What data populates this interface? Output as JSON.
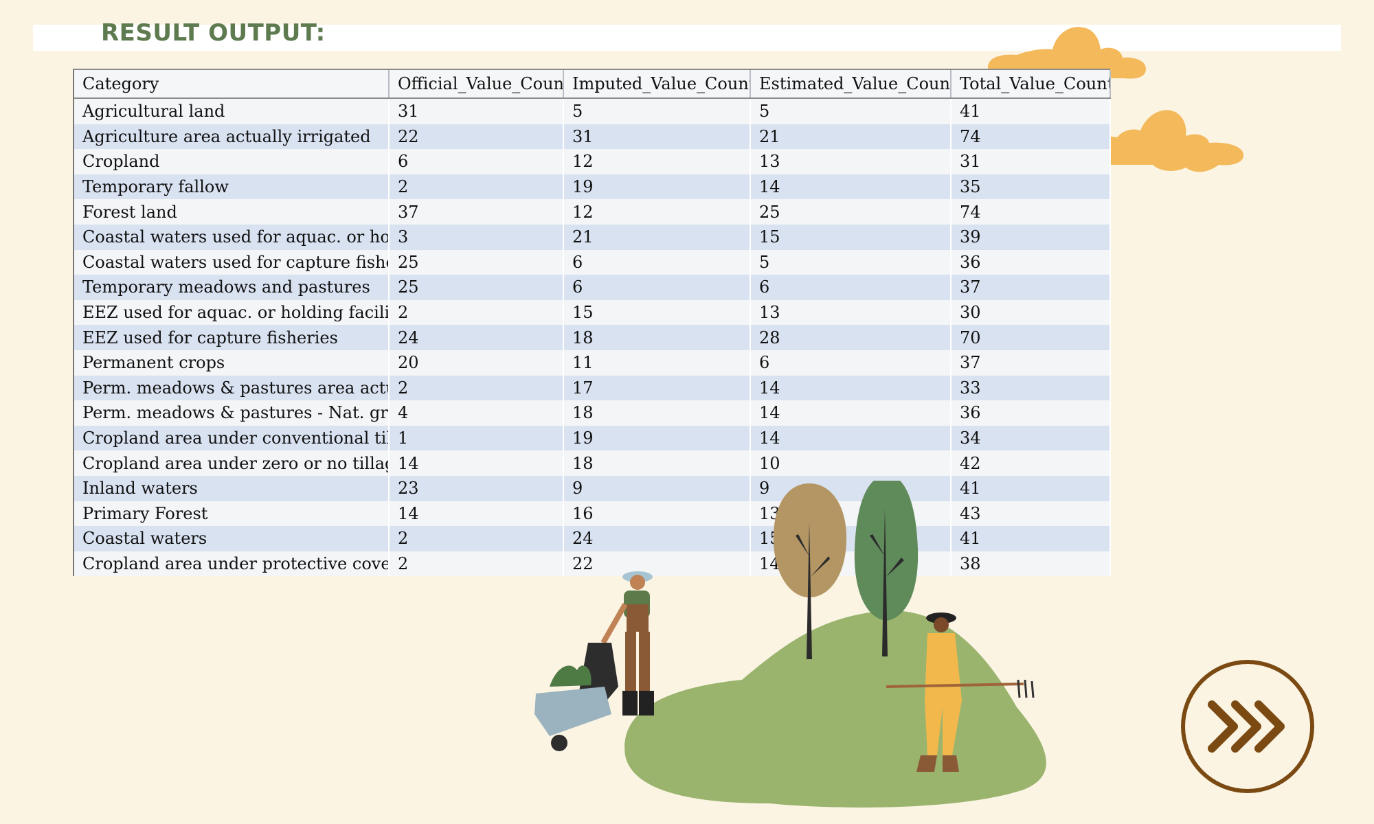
{
  "header": {
    "title": "RESULT OUTPUT:"
  },
  "table": {
    "columns": [
      "Category",
      "Official_Value_Count",
      "Imputed_Value_Count",
      "Estimated_Value_Count",
      "Total_Value_Count"
    ],
    "rows": [
      [
        "Agricultural land",
        "31",
        "5",
        "5",
        "41"
      ],
      [
        "Agriculture area actually irrigated",
        "22",
        "31",
        "21",
        "74"
      ],
      [
        "Cropland",
        "6",
        "12",
        "13",
        "31"
      ],
      [
        "Temporary fallow",
        "2",
        "19",
        "14",
        "35"
      ],
      [
        "Forest land",
        "37",
        "12",
        "25",
        "74"
      ],
      [
        "Coastal waters used for aquac. or hold...",
        "3",
        "21",
        "15",
        "39"
      ],
      [
        "Coastal waters used for capture fisher...",
        "25",
        "6",
        "5",
        "36"
      ],
      [
        "Temporary meadows and pastures",
        "25",
        "6",
        "6",
        "37"
      ],
      [
        "EEZ used for aquac. or holding faciliti...",
        "2",
        "15",
        "13",
        "30"
      ],
      [
        "EEZ used for capture fisheries",
        "24",
        "18",
        "28",
        "70"
      ],
      [
        "Permanent crops",
        "20",
        "11",
        "6",
        "37"
      ],
      [
        "Perm. meadows & pastures area actu...",
        "2",
        "17",
        "14",
        "33"
      ],
      [
        "Perm. meadows & pastures - Nat. gro...",
        "4",
        "18",
        "14",
        "36"
      ],
      [
        "Cropland area under conventional till...",
        "1",
        "19",
        "14",
        "34"
      ],
      [
        "Cropland area under zero or no tillage",
        "14",
        "18",
        "10",
        "42"
      ],
      [
        "Inland waters",
        "23",
        "9",
        "9",
        "41"
      ],
      [
        "Primary Forest",
        "14",
        "16",
        "13",
        "43"
      ],
      [
        "Coastal waters",
        "2",
        "24",
        "15",
        "41"
      ],
      [
        "Cropland area under protective cover",
        "2",
        "22",
        "14",
        "38"
      ]
    ]
  },
  "decor": {
    "cloud_color": "#f4b95a",
    "hill_color": "#9ab46e",
    "accent_brown": "#7a4a12",
    "icons": [
      "cloud-icon",
      "farmer-wheelbarrow-illustration",
      "farmer-rake-illustration",
      "tree-icon",
      "fast-forward-icon"
    ]
  }
}
